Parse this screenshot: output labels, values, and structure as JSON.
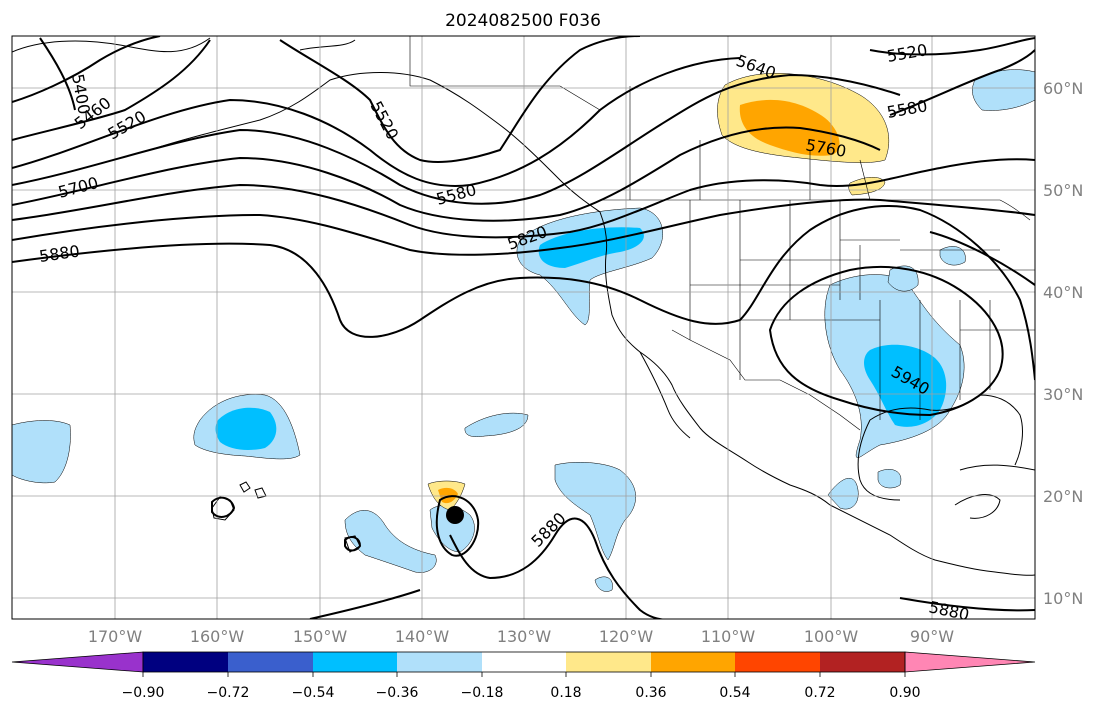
{
  "title": "2024082500 F036",
  "map": {
    "lon_labels": [
      "170°W",
      "160°W",
      "150°W",
      "140°W",
      "130°W",
      "120°W",
      "110°W",
      "100°W",
      "90°W"
    ],
    "lat_labels": [
      "60°N",
      "50°N",
      "40°N",
      "30°N",
      "20°N",
      "10°N"
    ],
    "contour_labels": [
      "5400",
      "5460",
      "5520",
      "5520",
      "5580",
      "5640",
      "5700",
      "5760",
      "5820",
      "5880",
      "5880",
      "5880",
      "5940",
      "5520",
      "5580"
    ],
    "colors": {
      "contour": "#000000",
      "coast": "#000000",
      "grid": "#a0a0a0",
      "light_blue": "#b0e0fa",
      "deep_sky_blue": "#00bfff",
      "light_yellow": "#ffe88a",
      "orange": "#ffa500"
    }
  },
  "colorbar": {
    "labels": [
      "−0.90",
      "−0.72",
      "−0.54",
      "−0.36",
      "−0.18",
      "0.18",
      "0.36",
      "0.54",
      "0.72",
      "0.90"
    ],
    "colors": [
      "#9932cc",
      "#000080",
      "#3a5fcd",
      "#00bfff",
      "#b0e0fa",
      "#ffffff",
      "#ffe88a",
      "#ffa500",
      "#ff4500",
      "#b22222",
      "#ff86b4"
    ]
  }
}
